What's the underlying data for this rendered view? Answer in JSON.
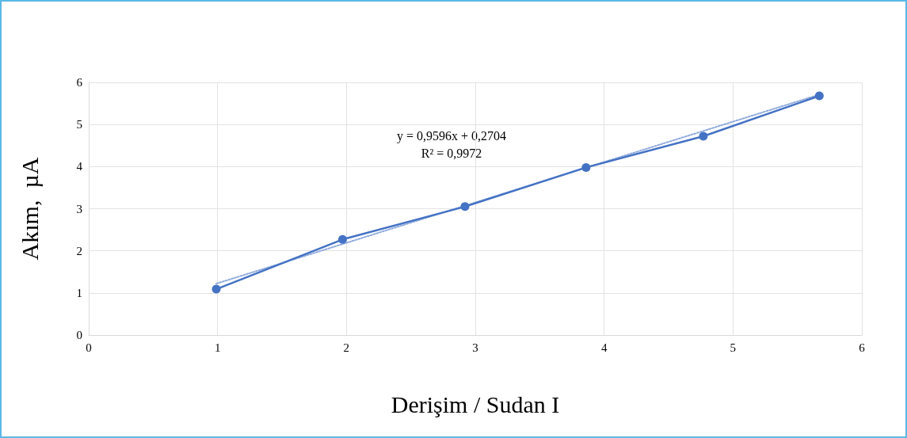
{
  "chart_data": {
    "type": "line",
    "xlabel": "Derişim / Sudan I",
    "ylabel": "Akım,  µA",
    "xlim": [
      0,
      6
    ],
    "xticks": [
      0,
      1,
      2,
      3,
      4,
      5,
      6
    ],
    "ylim": [
      0,
      6
    ],
    "yticks": [
      0,
      1,
      2,
      3,
      4,
      5,
      6
    ],
    "grid": true,
    "marker": "circle",
    "line_style": "solid",
    "annotations": [
      "y = 0,9596x + 0,2704",
      "R² = 0,9972"
    ],
    "series": [
      {
        "color": "#4472c4",
        "x": [
          0.99,
          1.97,
          2.92,
          3.86,
          4.77,
          5.67
        ],
        "values": [
          1.09,
          2.27,
          3.05,
          3.98,
          4.72,
          5.68
        ]
      },
      {
        "type": "line",
        "color": "#8faadc",
        "line_style": "dotted",
        "marker": "none",
        "x": [
          0.99,
          5.67
        ],
        "values": [
          1.22,
          5.71
        ]
      }
    ]
  }
}
